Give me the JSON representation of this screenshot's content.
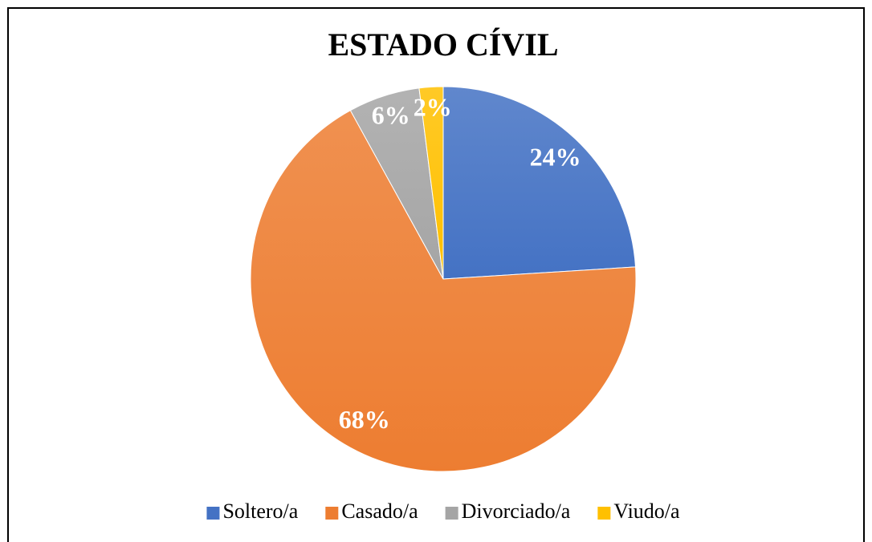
{
  "chart_data": {
    "type": "pie",
    "title": "ESTADO CÍVIL",
    "categories": [
      "Soltero/a",
      "Casado/a",
      "Divorciado/a",
      "Viudo/a"
    ],
    "values": [
      24,
      68,
      6,
      2
    ],
    "value_labels": [
      "24%",
      "68%",
      "6%",
      "2%"
    ],
    "colors": [
      "#4472c4",
      "#ed7d31",
      "#a5a5a5",
      "#ffc000"
    ],
    "legend": "bottom"
  }
}
